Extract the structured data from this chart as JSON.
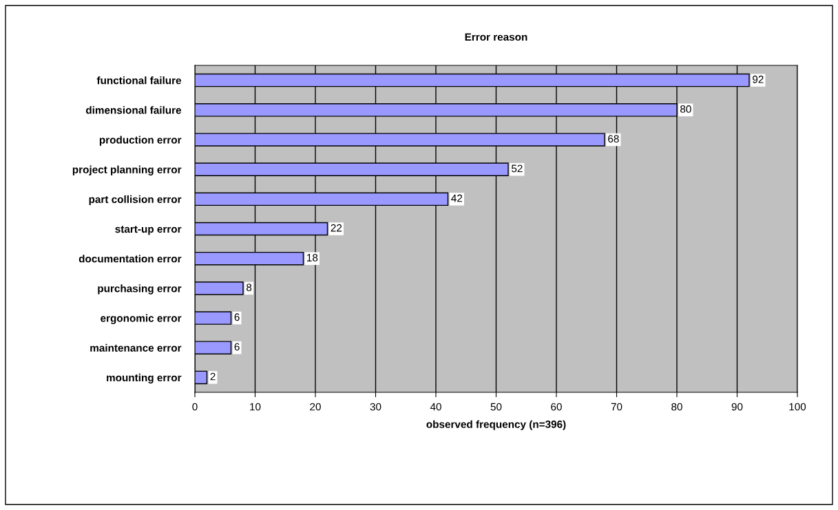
{
  "chart_data": {
    "type": "bar",
    "orientation": "horizontal",
    "title": "Error reason",
    "xlabel": "observed frequency (n=396)",
    "categories": [
      "functional failure",
      "dimensional failure",
      "production error",
      "project planning error",
      "part collision error",
      "start-up error",
      "documentation error",
      "purchasing error",
      "ergonomic error",
      "maintenance error",
      "mounting error"
    ],
    "values": [
      92,
      80,
      68,
      52,
      42,
      22,
      18,
      8,
      6,
      6,
      2
    ],
    "color": "#9999ff",
    "xlim": [
      0,
      100
    ],
    "xticks": [
      0,
      10,
      20,
      30,
      40,
      50,
      60,
      70,
      80,
      90,
      100
    ],
    "grid": "x",
    "data_labels": true
  }
}
